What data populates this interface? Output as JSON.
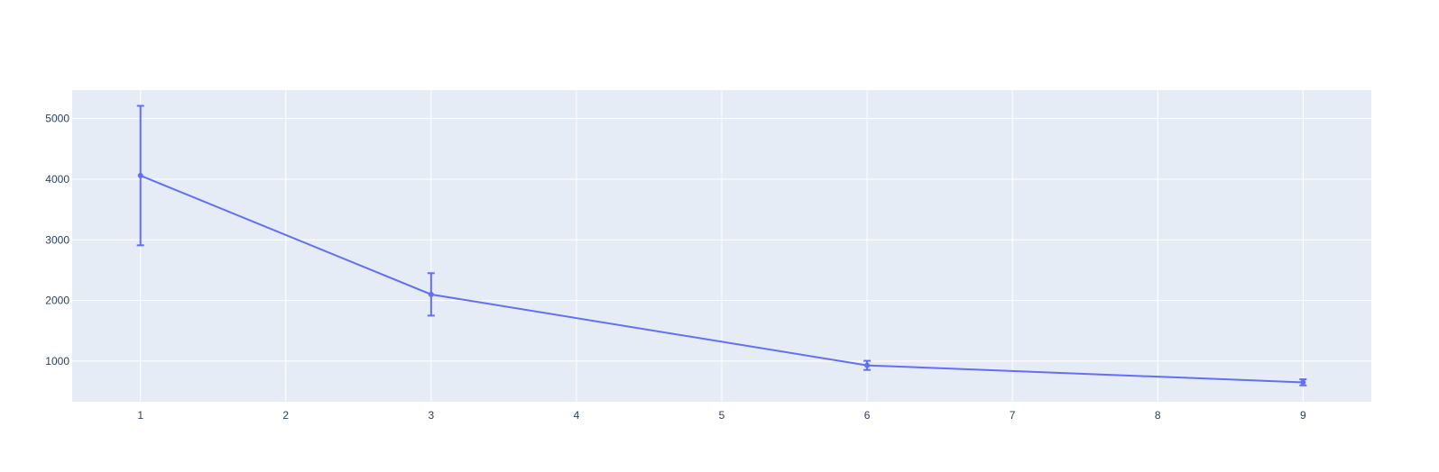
{
  "chart_data": {
    "type": "line",
    "title": "",
    "xlabel": "",
    "ylabel": "",
    "x_ticks": [
      1,
      2,
      3,
      4,
      5,
      6,
      7,
      8,
      9
    ],
    "y_ticks": [
      1000,
      2000,
      3000,
      4000,
      5000
    ],
    "xlim": [
      0.53,
      9.47
    ],
    "ylim": [
      330,
      5470
    ],
    "grid": true,
    "colors": {
      "plot_background": "#e5ecf6",
      "grid": "#ffffff",
      "series": "#636efa",
      "tick_text": "#2a3f5f"
    },
    "series": [
      {
        "points": [
          {
            "x": 1,
            "y": 4060,
            "error_minus": 1150,
            "error_plus": 1150
          },
          {
            "x": 3,
            "y": 2100,
            "error_minus": 350,
            "error_plus": 350
          },
          {
            "x": 6,
            "y": 930,
            "error_minus": 75,
            "error_plus": 75
          },
          {
            "x": 9,
            "y": 650,
            "error_minus": 50,
            "error_plus": 50
          }
        ]
      }
    ]
  }
}
